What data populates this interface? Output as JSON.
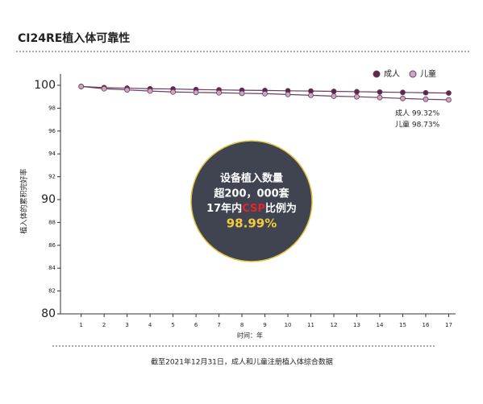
{
  "chart_data": {
    "type": "line",
    "title": "CI24RE植入体可靠性",
    "y_label": "植入体的累积完好率",
    "x_label": "时间：年",
    "footer": "截至2021年12月31日，成人和儿童注册植入体综合数据",
    "x": [
      1,
      2,
      3,
      4,
      5,
      6,
      7,
      8,
      9,
      10,
      11,
      12,
      13,
      14,
      15,
      16,
      17
    ],
    "xlim": [
      0.1,
      17.3
    ],
    "xticks": [
      1,
      2,
      3,
      4,
      5,
      6,
      7,
      8,
      9,
      10,
      11,
      12,
      13,
      14,
      15,
      16,
      17
    ],
    "ylim": [
      80,
      101
    ],
    "yticks": [
      80,
      82,
      84,
      86,
      88,
      90,
      92,
      94,
      96,
      98,
      100
    ],
    "legend_position": "top-right",
    "series": [
      {
        "name": "成人",
        "color": "#5a2a4e",
        "line_color": "#6b3a5e",
        "values": [
          99.9,
          99.8,
          99.75,
          99.7,
          99.68,
          99.63,
          99.6,
          99.57,
          99.55,
          99.52,
          99.5,
          99.47,
          99.44,
          99.41,
          99.38,
          99.35,
          99.32
        ]
      },
      {
        "name": "儿童",
        "color": "#c9a8c0",
        "line_color": "#6b3a5e",
        "values": [
          99.9,
          99.7,
          99.6,
          99.5,
          99.42,
          99.38,
          99.35,
          99.3,
          99.27,
          99.2,
          99.13,
          99.05,
          99.0,
          98.93,
          98.85,
          98.78,
          98.73
        ]
      }
    ],
    "annotations": [
      "成人 99.32%",
      "儿童 98.73%"
    ],
    "callout": {
      "line1": "设备植入数量",
      "line2": "超200，000套",
      "line3a": "17年内",
      "line3b": "CSP",
      "line3c": "比例为",
      "line4": "98.99%"
    }
  }
}
